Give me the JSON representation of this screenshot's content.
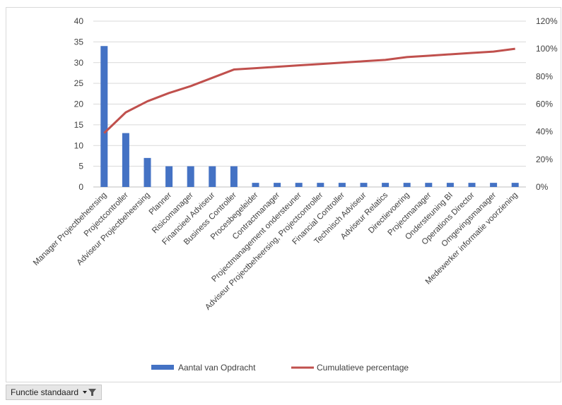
{
  "chart_data": {
    "type": "bar",
    "categories": [
      "Manager Projectbeheersing",
      "Projectcontroller",
      "Adviseur Projectbeheersing",
      "Planner",
      "Risicomanager",
      "Financieel Adviseur",
      "Business Controller",
      "Procesbegeleider",
      "Contractmanager",
      "Projectmanagement ondersteuner",
      "Adviseur Projectbeheersing, Projectcontroller",
      "Financial Controller",
      "Technisch Adviseur",
      "Adviseur Relatics",
      "Directievoering",
      "Projectmanager",
      "Ondersteuning BI",
      "Operations Director",
      "Omgevingsmanager",
      "Medewerker informatie voorziening"
    ],
    "series": [
      {
        "name": "Aantal van Opdracht",
        "type": "bar",
        "axis": "left",
        "color": "#4472c4",
        "values": [
          34,
          13,
          7,
          5,
          5,
          5,
          5,
          1,
          1,
          1,
          1,
          1,
          1,
          1,
          1,
          1,
          1,
          1,
          1,
          1
        ]
      },
      {
        "name": "Cumulatieve percentage",
        "type": "line",
        "axis": "right",
        "color": "#c0504d",
        "values": [
          39,
          54,
          62,
          68,
          73,
          79,
          85,
          86,
          87,
          88,
          89,
          90,
          91,
          92,
          94,
          95,
          96,
          97,
          98,
          100
        ]
      }
    ],
    "ylim_left": [
      0,
      40
    ],
    "yticks_left": [
      "0",
      "5",
      "10",
      "15",
      "20",
      "25",
      "30",
      "35",
      "40"
    ],
    "ylim_right": [
      0,
      120
    ],
    "yticks_right": [
      "0%",
      "20%",
      "40%",
      "60%",
      "80%",
      "100%",
      "120%"
    ],
    "grid": true,
    "legend_position": "bottom"
  },
  "filter_button": {
    "label": "Functie standaard"
  }
}
